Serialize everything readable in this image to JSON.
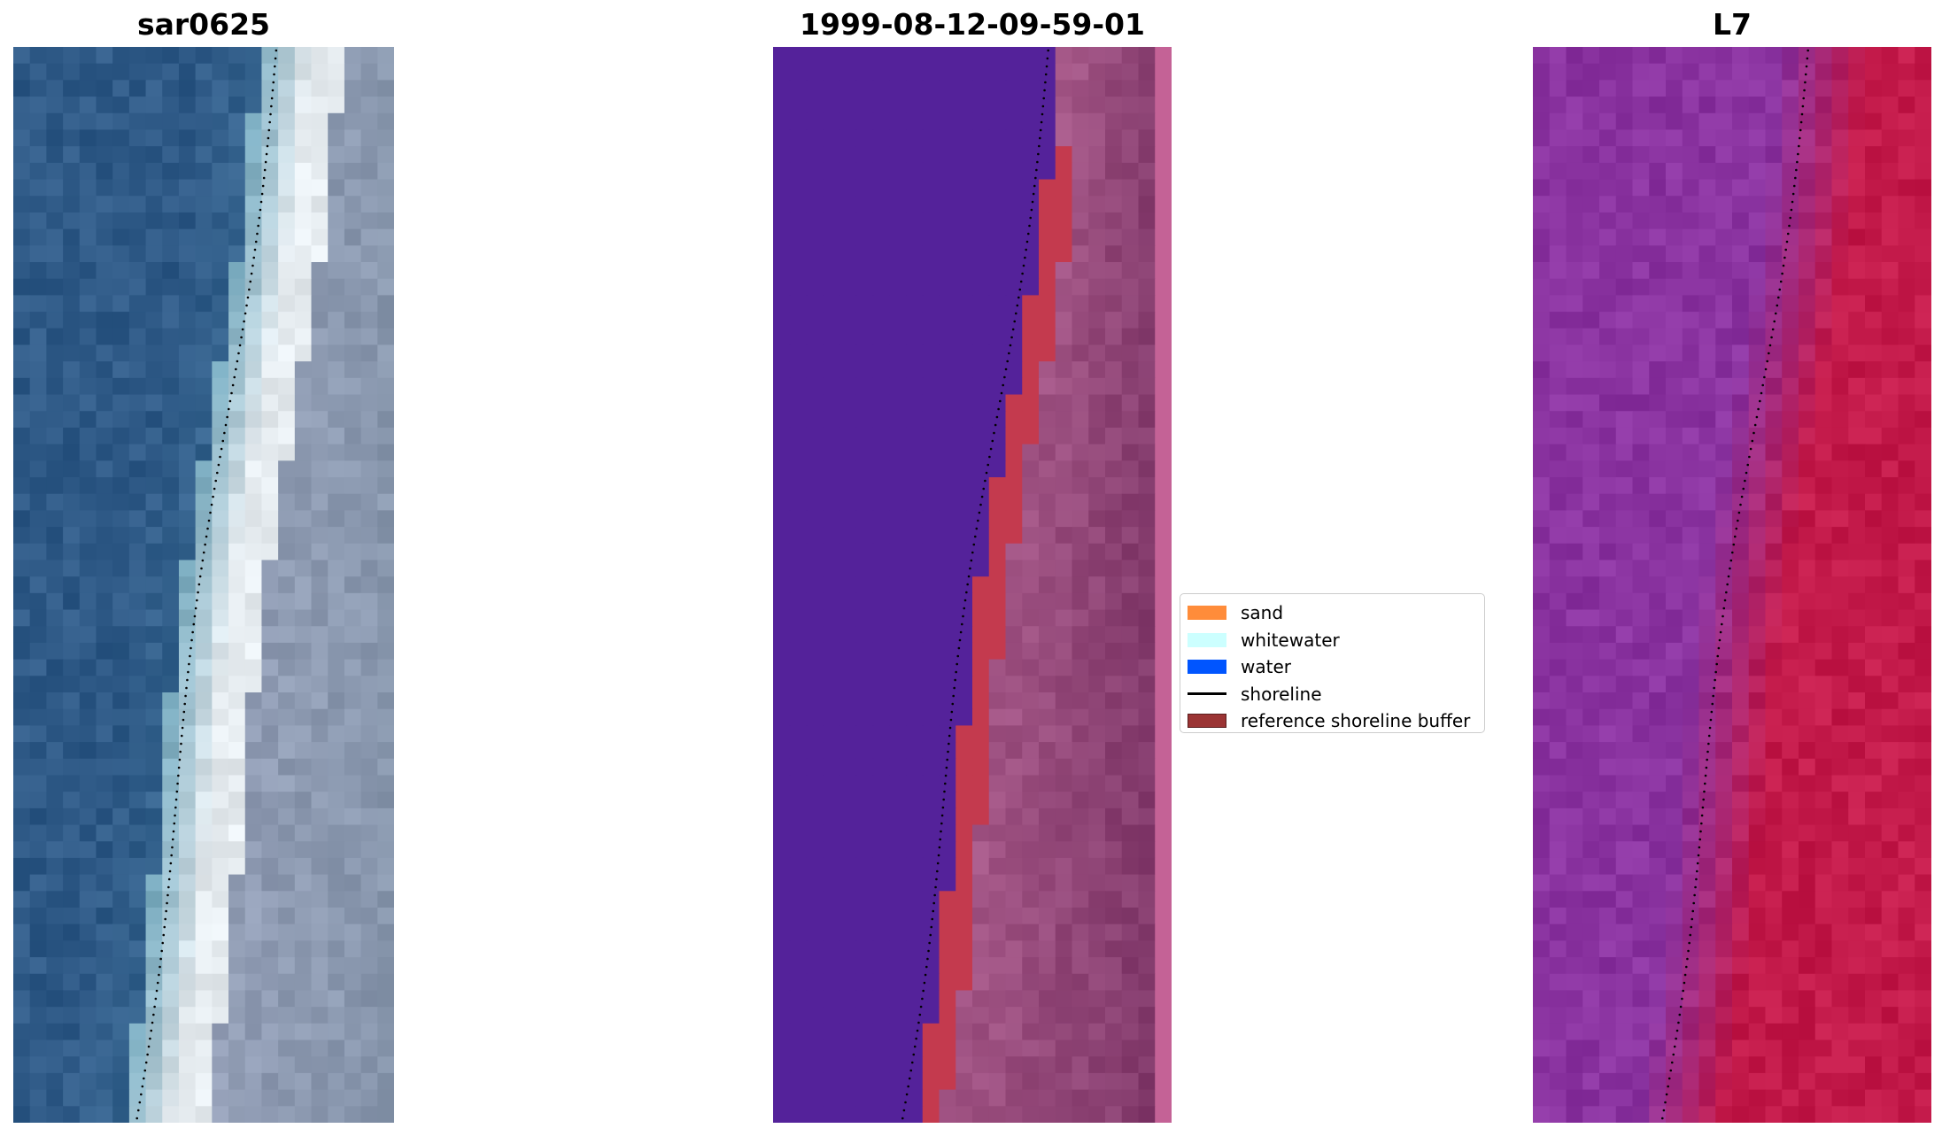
{
  "panels": [
    {
      "title": "sar0625"
    },
    {
      "title": "1999-08-12-09-59-01"
    },
    {
      "title": "L7"
    }
  ],
  "legend": {
    "items": [
      {
        "label": "sand",
        "color": "#ff8c3a"
      },
      {
        "label": "whitewater",
        "color": "#ccffff"
      },
      {
        "label": "water",
        "color": "#0055ff"
      },
      {
        "label": "shoreline",
        "color": "#000000"
      },
      {
        "label": "reference shoreline buffer",
        "color": "#9b3434"
      }
    ]
  },
  "colors": {
    "rgb_water": "#2f5a87",
    "rgb_foam": "#e6ecf0",
    "rgb_land": "#9ea5bf",
    "class_water": "#54229a",
    "class_buffer": "#c43a4e",
    "class_land": "#a85a8a",
    "ndwi_water": "#8a33a0",
    "ndwi_land": "#c31a4a"
  }
}
